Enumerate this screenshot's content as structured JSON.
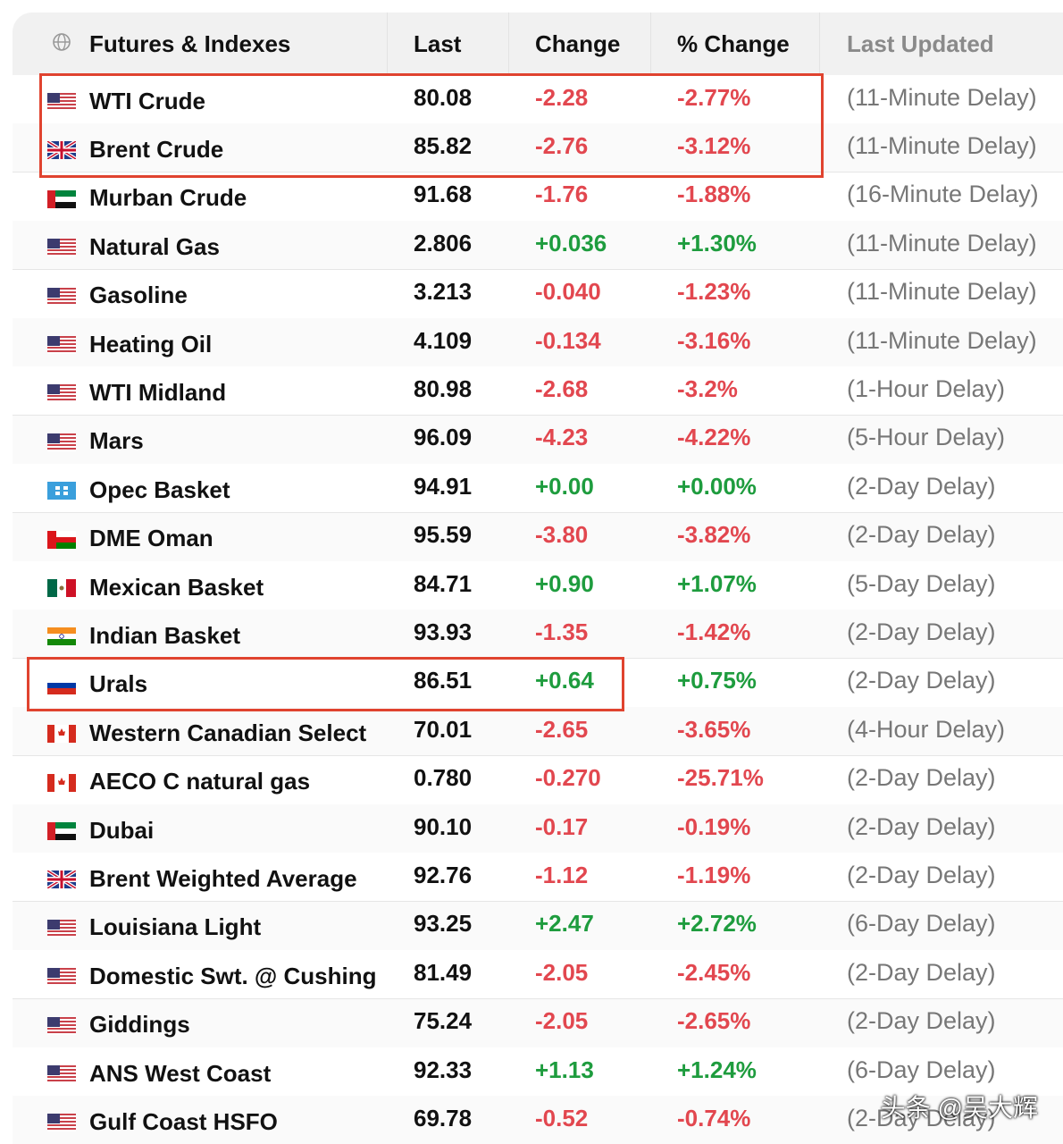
{
  "table": {
    "header": [
      "Futures & Indexes",
      "Last",
      "Change",
      "% Change",
      "Last Updated"
    ],
    "rows": [
      [
        "WTI Crude",
        "80.08",
        "-2.28",
        "-2.77%",
        "(11-Minute Delay)"
      ],
      [
        "Brent Crude",
        "85.82",
        "-2.76",
        "-3.12%",
        "(11-Minute Delay)"
      ],
      [
        "Murban Crude",
        "91.68",
        "-1.76",
        "-1.88%",
        "(16-Minute Delay)"
      ],
      [
        "Natural Gas",
        "2.806",
        "+0.036",
        "+1.30%",
        "(11-Minute Delay)"
      ],
      [
        "Gasoline",
        "3.213",
        "-0.040",
        "-1.23%",
        "(11-Minute Delay)"
      ],
      [
        "Heating Oil",
        "4.109",
        "-0.134",
        "-3.16%",
        "(11-Minute Delay)"
      ],
      [
        "WTI Midland",
        "80.98",
        "-2.68",
        "-3.2%",
        "(1-Hour Delay)"
      ],
      [
        "Mars",
        "96.09",
        "-4.23",
        "-4.22%",
        "(5-Hour Delay)"
      ],
      [
        "Opec Basket",
        "94.91",
        "+0.00",
        "+0.00%",
        "(2-Day Delay)"
      ],
      [
        "DME Oman",
        "95.59",
        "-3.80",
        "-3.82%",
        "(2-Day Delay)"
      ],
      [
        "Mexican Basket",
        "84.71",
        "+0.90",
        "+1.07%",
        "(5-Day Delay)"
      ],
      [
        "Indian Basket",
        "93.93",
        "-1.35",
        "-1.42%",
        "(2-Day Delay)"
      ],
      [
        "Urals",
        "86.51",
        "+0.64",
        "+0.75%",
        "(2-Day Delay)"
      ],
      [
        "Western Canadian Select",
        "70.01",
        "-2.65",
        "-3.65%",
        "(4-Hour Delay)"
      ],
      [
        "AECO C natural gas",
        "0.780",
        "-0.270",
        "-25.71%",
        "(2-Day Delay)"
      ],
      [
        "Dubai",
        "90.10",
        "-0.17",
        "-0.19%",
        "(2-Day Delay)"
      ],
      [
        "Brent Weighted Average",
        "92.76",
        "-1.12",
        "-1.19%",
        "(2-Day Delay)"
      ],
      [
        "Louisiana Light",
        "93.25",
        "+2.47",
        "+2.72%",
        "(6-Day Delay)"
      ],
      [
        "Domestic Swt. @ Cushing",
        "81.49",
        "-2.05",
        "-2.45%",
        "(2-Day Delay)"
      ],
      [
        "Giddings",
        "75.24",
        "-2.05",
        "-2.65%",
        "(2-Day Delay)"
      ],
      [
        "ANS West Coast",
        "92.33",
        "+1.13",
        "+1.24%",
        "(6-Day Delay)"
      ],
      [
        "Gulf Coast HSFO",
        "69.78",
        "-0.52",
        "-0.74%",
        "(2-Day Delay)"
      ]
    ]
  },
  "watermark": "头条 @吴大辉"
}
